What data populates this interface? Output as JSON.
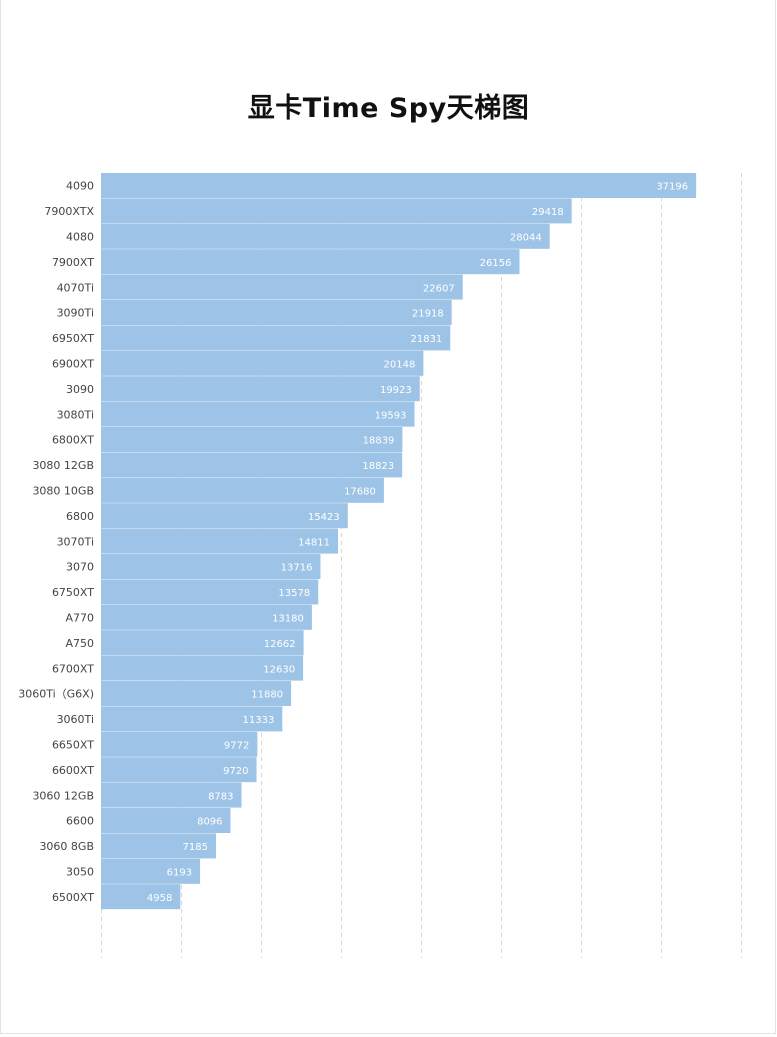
{
  "chart_data": {
    "type": "bar",
    "orientation": "horizontal",
    "title": "显卡Time Spy天梯图",
    "categories": [
      "4090",
      "7900XTX",
      "4080",
      "7900XT",
      "4070Ti",
      "3090Ti",
      "6950XT",
      "6900XT",
      "3090",
      "3080Ti",
      "6800XT",
      "3080 12GB",
      "3080 10GB",
      "6800",
      "3070Ti",
      "3070",
      "6750XT",
      "A770",
      "A750",
      "6700XT",
      "3060Ti（G6X)",
      "3060Ti",
      "6650XT",
      "6600XT",
      "3060 12GB",
      "6600",
      "3060 8GB",
      "3050",
      "6500XT"
    ],
    "values": [
      37196,
      29418,
      28044,
      26156,
      22607,
      21918,
      21831,
      20148,
      19923,
      19593,
      18839,
      18823,
      17680,
      15423,
      14811,
      13716,
      13578,
      13180,
      12662,
      12630,
      11880,
      11333,
      9772,
      9720,
      8783,
      8096,
      7185,
      6193,
      4958
    ],
    "xlim": [
      0,
      40000
    ],
    "grid": true,
    "bar_color": "#9dc3e6",
    "label_color": "#ffffff",
    "data_labels": "inside-end"
  }
}
